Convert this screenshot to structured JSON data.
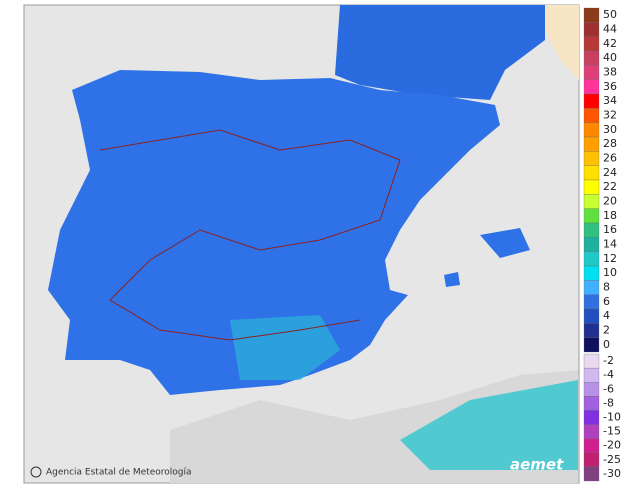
{
  "map": {
    "credit": "Agencia Estatal de Meteorología",
    "logo": "aemet",
    "legend": {
      "positive": [
        {
          "label": "50",
          "color": "#8b3a1a"
        },
        {
          "label": "44",
          "color": "#a03030"
        },
        {
          "label": "42",
          "color": "#b83838"
        },
        {
          "label": "40",
          "color": "#c84060"
        },
        {
          "label": "38",
          "color": "#e0407a"
        },
        {
          "label": "36",
          "color": "#ff3399"
        },
        {
          "label": "34",
          "color": "#ff0000"
        },
        {
          "label": "32",
          "color": "#ff5500"
        },
        {
          "label": "30",
          "color": "#ff8800"
        },
        {
          "label": "28",
          "color": "#ffa000"
        },
        {
          "label": "26",
          "color": "#ffc000"
        },
        {
          "label": "24",
          "color": "#ffe000"
        },
        {
          "label": "22",
          "color": "#ffff00"
        },
        {
          "label": "20",
          "color": "#c8ff30"
        },
        {
          "label": "18",
          "color": "#60e040"
        },
        {
          "label": "16",
          "color": "#30c080"
        },
        {
          "label": "14",
          "color": "#20b0a0"
        },
        {
          "label": "12",
          "color": "#20c8c8"
        },
        {
          "label": "10",
          "color": "#00e0f0"
        },
        {
          "label": "8",
          "color": "#40b0ff"
        },
        {
          "label": "6",
          "color": "#3070e0"
        },
        {
          "label": "4",
          "color": "#2050c0"
        },
        {
          "label": "2",
          "color": "#203090"
        },
        {
          "label": "0",
          "color": "#101060"
        }
      ],
      "negative": [
        {
          "label": "-2",
          "color": "#e8d8f0"
        },
        {
          "label": "-4",
          "color": "#d0b8f0"
        },
        {
          "label": "-6",
          "color": "#b890e8"
        },
        {
          "label": "-8",
          "color": "#a060e0"
        },
        {
          "label": "-10",
          "color": "#8030e0"
        },
        {
          "label": "-15",
          "color": "#b040c0"
        },
        {
          "label": "-20",
          "color": "#d02090"
        },
        {
          "label": "-25",
          "color": "#c02070"
        },
        {
          "label": "-30",
          "color": "#804080"
        }
      ]
    }
  }
}
